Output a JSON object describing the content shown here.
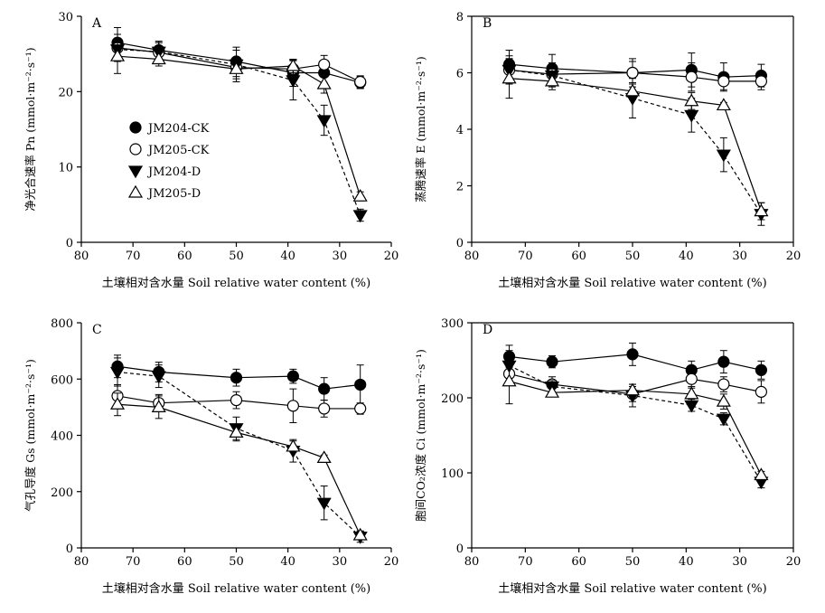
{
  "legend": [
    {
      "name": "JM204-CK",
      "marker": "filled-circle"
    },
    {
      "name": "JM205-CK",
      "marker": "open-circle"
    },
    {
      "name": "JM204-D",
      "marker": "filled-triangle-down"
    },
    {
      "name": "JM205-D",
      "marker": "open-triangle-up"
    }
  ],
  "chart_data": [
    {
      "type": "line",
      "panel": "A",
      "xlabel": "土壤相对含水量 Soil relative water content (%)",
      "ylabel": "净光合速率 Pn (mmol·m⁻²·s⁻¹)",
      "xlim": [
        80,
        20
      ],
      "xticks": [
        "80",
        "70",
        "60",
        "50",
        "40",
        "30",
        "20"
      ],
      "ylim": [
        0,
        30
      ],
      "yticks": [
        "0",
        "10",
        "20",
        "30"
      ],
      "series": [
        {
          "name": "JM204-CK",
          "x": [
            73,
            65,
            50,
            39,
            33,
            26
          ],
          "y": [
            26.5,
            25.5,
            24,
            22.5,
            22.5,
            21.2
          ],
          "err": [
            2.0,
            1.2,
            1.5,
            1.8,
            1.3,
            0.8
          ]
        },
        {
          "name": "JM205-CK",
          "x": [
            73,
            65,
            50,
            39,
            33,
            26
          ],
          "y": [
            25.8,
            25.2,
            23.2,
            23.0,
            23.6,
            21.3
          ],
          "err": [
            1.8,
            1.3,
            1.2,
            1.2,
            1.2,
            0.8
          ]
        },
        {
          "name": "JM204-D",
          "x": [
            73,
            65,
            50,
            39,
            33,
            26
          ],
          "y": [
            25.6,
            25.3,
            23.6,
            21.5,
            16.2,
            3.6
          ],
          "err": [
            1.5,
            1.2,
            2.3,
            2.6,
            2.0,
            0.8
          ]
        },
        {
          "name": "JM205-D",
          "x": [
            73,
            65,
            50,
            39,
            33,
            26
          ],
          "y": [
            24.7,
            24.3,
            23.0,
            23.4,
            21.0,
            6.1
          ],
          "err": [
            2.3,
            0.9,
            1.3,
            0.9,
            1.2,
            0.6
          ]
        }
      ]
    },
    {
      "type": "line",
      "panel": "B",
      "xlabel": "土壤相对含水量 Soil relative water content (%)",
      "ylabel": "蒸腾速率 E (mmol·m⁻²·s⁻¹)",
      "xlim": [
        80,
        20
      ],
      "xticks": [
        "80",
        "70",
        "60",
        "50",
        "40",
        "30",
        "20"
      ],
      "ylim": [
        0,
        8
      ],
      "yticks": [
        "0",
        "2",
        "4",
        "6",
        "8"
      ],
      "series": [
        {
          "name": "JM204-CK",
          "x": [
            73,
            65,
            50,
            39,
            33,
            26
          ],
          "y": [
            6.3,
            6.15,
            6.0,
            6.1,
            5.85,
            5.9
          ],
          "err": [
            0.5,
            0.5,
            0.4,
            0.6,
            0.5,
            0.4
          ]
        },
        {
          "name": "JM205-CK",
          "x": [
            73,
            65,
            50,
            39,
            33,
            26
          ],
          "y": [
            6.1,
            5.95,
            6.0,
            5.85,
            5.7,
            5.7
          ],
          "err": [
            0.4,
            0.4,
            0.5,
            0.5,
            0.3,
            0.3
          ]
        },
        {
          "name": "JM204-D",
          "x": [
            73,
            65,
            50,
            39,
            33,
            26
          ],
          "y": [
            6.1,
            5.9,
            5.1,
            4.5,
            3.1,
            1.0
          ],
          "err": [
            0.5,
            0.4,
            0.7,
            0.6,
            0.6,
            0.4
          ]
        },
        {
          "name": "JM205-D",
          "x": [
            73,
            65,
            50,
            39,
            33,
            26
          ],
          "y": [
            5.8,
            5.7,
            5.35,
            5.0,
            4.85,
            1.1
          ],
          "err": [
            0.7,
            0.3,
            0.3,
            0.3,
            0.1,
            0.3
          ]
        }
      ]
    },
    {
      "type": "line",
      "panel": "C",
      "xlabel": "土壤相对含水量 Soil relative water content (%)",
      "ylabel": "气孔导度 Gs (mmol·m⁻²·s⁻¹)",
      "xlim": [
        80,
        20
      ],
      "xticks": [
        "80",
        "70",
        "60",
        "50",
        "40",
        "30",
        "20"
      ],
      "ylim": [
        0,
        800
      ],
      "yticks": [
        "0",
        "200",
        "400",
        "600",
        "800"
      ],
      "series": [
        {
          "name": "JM204-CK",
          "x": [
            73,
            65,
            50,
            39,
            33,
            26
          ],
          "y": [
            645,
            625,
            605,
            610,
            565,
            580
          ],
          "err": [
            40,
            35,
            30,
            25,
            40,
            70
          ]
        },
        {
          "name": "JM205-CK",
          "x": [
            73,
            65,
            50,
            39,
            33,
            26
          ],
          "y": [
            540,
            515,
            525,
            505,
            495,
            495
          ],
          "err": [
            40,
            30,
            30,
            60,
            30,
            20
          ]
        },
        {
          "name": "JM204-D",
          "x": [
            73,
            65,
            50,
            39,
            33,
            26
          ],
          "y": [
            625,
            610,
            425,
            345,
            160,
            40
          ],
          "err": [
            50,
            40,
            40,
            40,
            60,
            20
          ]
        },
        {
          "name": "JM205-D",
          "x": [
            73,
            65,
            50,
            39,
            33,
            26
          ],
          "y": [
            510,
            500,
            410,
            360,
            320,
            45
          ],
          "err": [
            40,
            40,
            30,
            20,
            10,
            15
          ]
        }
      ]
    },
    {
      "type": "line",
      "panel": "D",
      "xlabel": "土壤相对含水量 Soil relative water content (%)",
      "ylabel": "胞间CO₂浓度 Ci (mmol·m⁻²·s⁻¹)",
      "xlim": [
        80,
        20
      ],
      "xticks": [
        "80",
        "70",
        "60",
        "50",
        "40",
        "30",
        "20"
      ],
      "ylim": [
        0,
        300
      ],
      "yticks": [
        "0",
        "100",
        "200",
        "300"
      ],
      "series": [
        {
          "name": "JM204-CK",
          "x": [
            73,
            65,
            50,
            39,
            33,
            26
          ],
          "y": [
            255,
            248,
            258,
            237,
            248,
            237
          ],
          "err": [
            15,
            8,
            15,
            12,
            15,
            12
          ]
        },
        {
          "name": "JM205-CK",
          "x": [
            73,
            65,
            50,
            39,
            33,
            26
          ],
          "y": [
            232,
            218,
            205,
            225,
            218,
            208
          ],
          "err": [
            12,
            10,
            10,
            12,
            10,
            15
          ]
        },
        {
          "name": "JM204-D",
          "x": [
            73,
            65,
            50,
            39,
            33,
            26
          ],
          "y": [
            243,
            215,
            203,
            190,
            172,
            88
          ],
          "err": [
            20,
            8,
            15,
            8,
            8,
            8
          ]
        },
        {
          "name": "JM205-D",
          "x": [
            73,
            65,
            50,
            39,
            33,
            26
          ],
          "y": [
            222,
            207,
            210,
            205,
            195,
            97
          ],
          "err": [
            30,
            5,
            8,
            10,
            10,
            5
          ]
        }
      ]
    }
  ]
}
